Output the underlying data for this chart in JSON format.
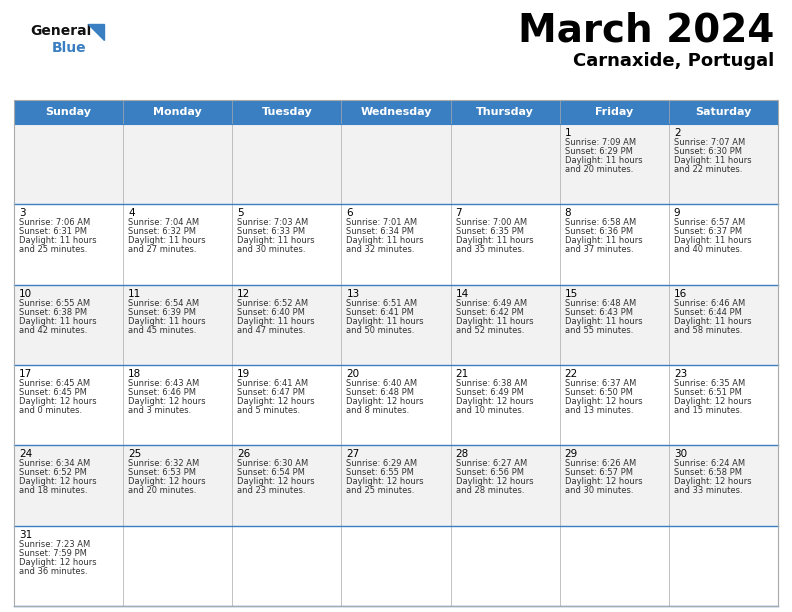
{
  "title": "March 2024",
  "subtitle": "Carnaxide, Portugal",
  "days_of_week": [
    "Sunday",
    "Monday",
    "Tuesday",
    "Wednesday",
    "Thursday",
    "Friday",
    "Saturday"
  ],
  "header_bg": "#3a7fc1",
  "header_text": "#ffffff",
  "row_bg_light": "#f2f2f2",
  "row_bg_white": "#ffffff",
  "title_color": "#000000",
  "subtitle_color": "#000000",
  "cell_text_color": "#333333",
  "grid_color": "#aaaaaa",
  "divider_color": "#3a7fc1",
  "logo_general_color": "#111111",
  "logo_blue_color": "#3a7fc1",
  "calendar": [
    [
      null,
      null,
      null,
      null,
      null,
      {
        "day": 1,
        "sunrise": "7:09 AM",
        "sunset": "6:29 PM",
        "daylight": "11 hours\nand 20 minutes."
      },
      {
        "day": 2,
        "sunrise": "7:07 AM",
        "sunset": "6:30 PM",
        "daylight": "11 hours\nand 22 minutes."
      }
    ],
    [
      {
        "day": 3,
        "sunrise": "7:06 AM",
        "sunset": "6:31 PM",
        "daylight": "11 hours\nand 25 minutes."
      },
      {
        "day": 4,
        "sunrise": "7:04 AM",
        "sunset": "6:32 PM",
        "daylight": "11 hours\nand 27 minutes."
      },
      {
        "day": 5,
        "sunrise": "7:03 AM",
        "sunset": "6:33 PM",
        "daylight": "11 hours\nand 30 minutes."
      },
      {
        "day": 6,
        "sunrise": "7:01 AM",
        "sunset": "6:34 PM",
        "daylight": "11 hours\nand 32 minutes."
      },
      {
        "day": 7,
        "sunrise": "7:00 AM",
        "sunset": "6:35 PM",
        "daylight": "11 hours\nand 35 minutes."
      },
      {
        "day": 8,
        "sunrise": "6:58 AM",
        "sunset": "6:36 PM",
        "daylight": "11 hours\nand 37 minutes."
      },
      {
        "day": 9,
        "sunrise": "6:57 AM",
        "sunset": "6:37 PM",
        "daylight": "11 hours\nand 40 minutes."
      }
    ],
    [
      {
        "day": 10,
        "sunrise": "6:55 AM",
        "sunset": "6:38 PM",
        "daylight": "11 hours\nand 42 minutes."
      },
      {
        "day": 11,
        "sunrise": "6:54 AM",
        "sunset": "6:39 PM",
        "daylight": "11 hours\nand 45 minutes."
      },
      {
        "day": 12,
        "sunrise": "6:52 AM",
        "sunset": "6:40 PM",
        "daylight": "11 hours\nand 47 minutes."
      },
      {
        "day": 13,
        "sunrise": "6:51 AM",
        "sunset": "6:41 PM",
        "daylight": "11 hours\nand 50 minutes."
      },
      {
        "day": 14,
        "sunrise": "6:49 AM",
        "sunset": "6:42 PM",
        "daylight": "11 hours\nand 52 minutes."
      },
      {
        "day": 15,
        "sunrise": "6:48 AM",
        "sunset": "6:43 PM",
        "daylight": "11 hours\nand 55 minutes."
      },
      {
        "day": 16,
        "sunrise": "6:46 AM",
        "sunset": "6:44 PM",
        "daylight": "11 hours\nand 58 minutes."
      }
    ],
    [
      {
        "day": 17,
        "sunrise": "6:45 AM",
        "sunset": "6:45 PM",
        "daylight": "12 hours\nand 0 minutes."
      },
      {
        "day": 18,
        "sunrise": "6:43 AM",
        "sunset": "6:46 PM",
        "daylight": "12 hours\nand 3 minutes."
      },
      {
        "day": 19,
        "sunrise": "6:41 AM",
        "sunset": "6:47 PM",
        "daylight": "12 hours\nand 5 minutes."
      },
      {
        "day": 20,
        "sunrise": "6:40 AM",
        "sunset": "6:48 PM",
        "daylight": "12 hours\nand 8 minutes."
      },
      {
        "day": 21,
        "sunrise": "6:38 AM",
        "sunset": "6:49 PM",
        "daylight": "12 hours\nand 10 minutes."
      },
      {
        "day": 22,
        "sunrise": "6:37 AM",
        "sunset": "6:50 PM",
        "daylight": "12 hours\nand 13 minutes."
      },
      {
        "day": 23,
        "sunrise": "6:35 AM",
        "sunset": "6:51 PM",
        "daylight": "12 hours\nand 15 minutes."
      }
    ],
    [
      {
        "day": 24,
        "sunrise": "6:34 AM",
        "sunset": "6:52 PM",
        "daylight": "12 hours\nand 18 minutes."
      },
      {
        "day": 25,
        "sunrise": "6:32 AM",
        "sunset": "6:53 PM",
        "daylight": "12 hours\nand 20 minutes."
      },
      {
        "day": 26,
        "sunrise": "6:30 AM",
        "sunset": "6:54 PM",
        "daylight": "12 hours\nand 23 minutes."
      },
      {
        "day": 27,
        "sunrise": "6:29 AM",
        "sunset": "6:55 PM",
        "daylight": "12 hours\nand 25 minutes."
      },
      {
        "day": 28,
        "sunrise": "6:27 AM",
        "sunset": "6:56 PM",
        "daylight": "12 hours\nand 28 minutes."
      },
      {
        "day": 29,
        "sunrise": "6:26 AM",
        "sunset": "6:57 PM",
        "daylight": "12 hours\nand 30 minutes."
      },
      {
        "day": 30,
        "sunrise": "6:24 AM",
        "sunset": "6:58 PM",
        "daylight": "12 hours\nand 33 minutes."
      }
    ],
    [
      {
        "day": 31,
        "sunrise": "7:23 AM",
        "sunset": "7:59 PM",
        "daylight": "12 hours\nand 36 minutes."
      },
      null,
      null,
      null,
      null,
      null,
      null
    ]
  ]
}
